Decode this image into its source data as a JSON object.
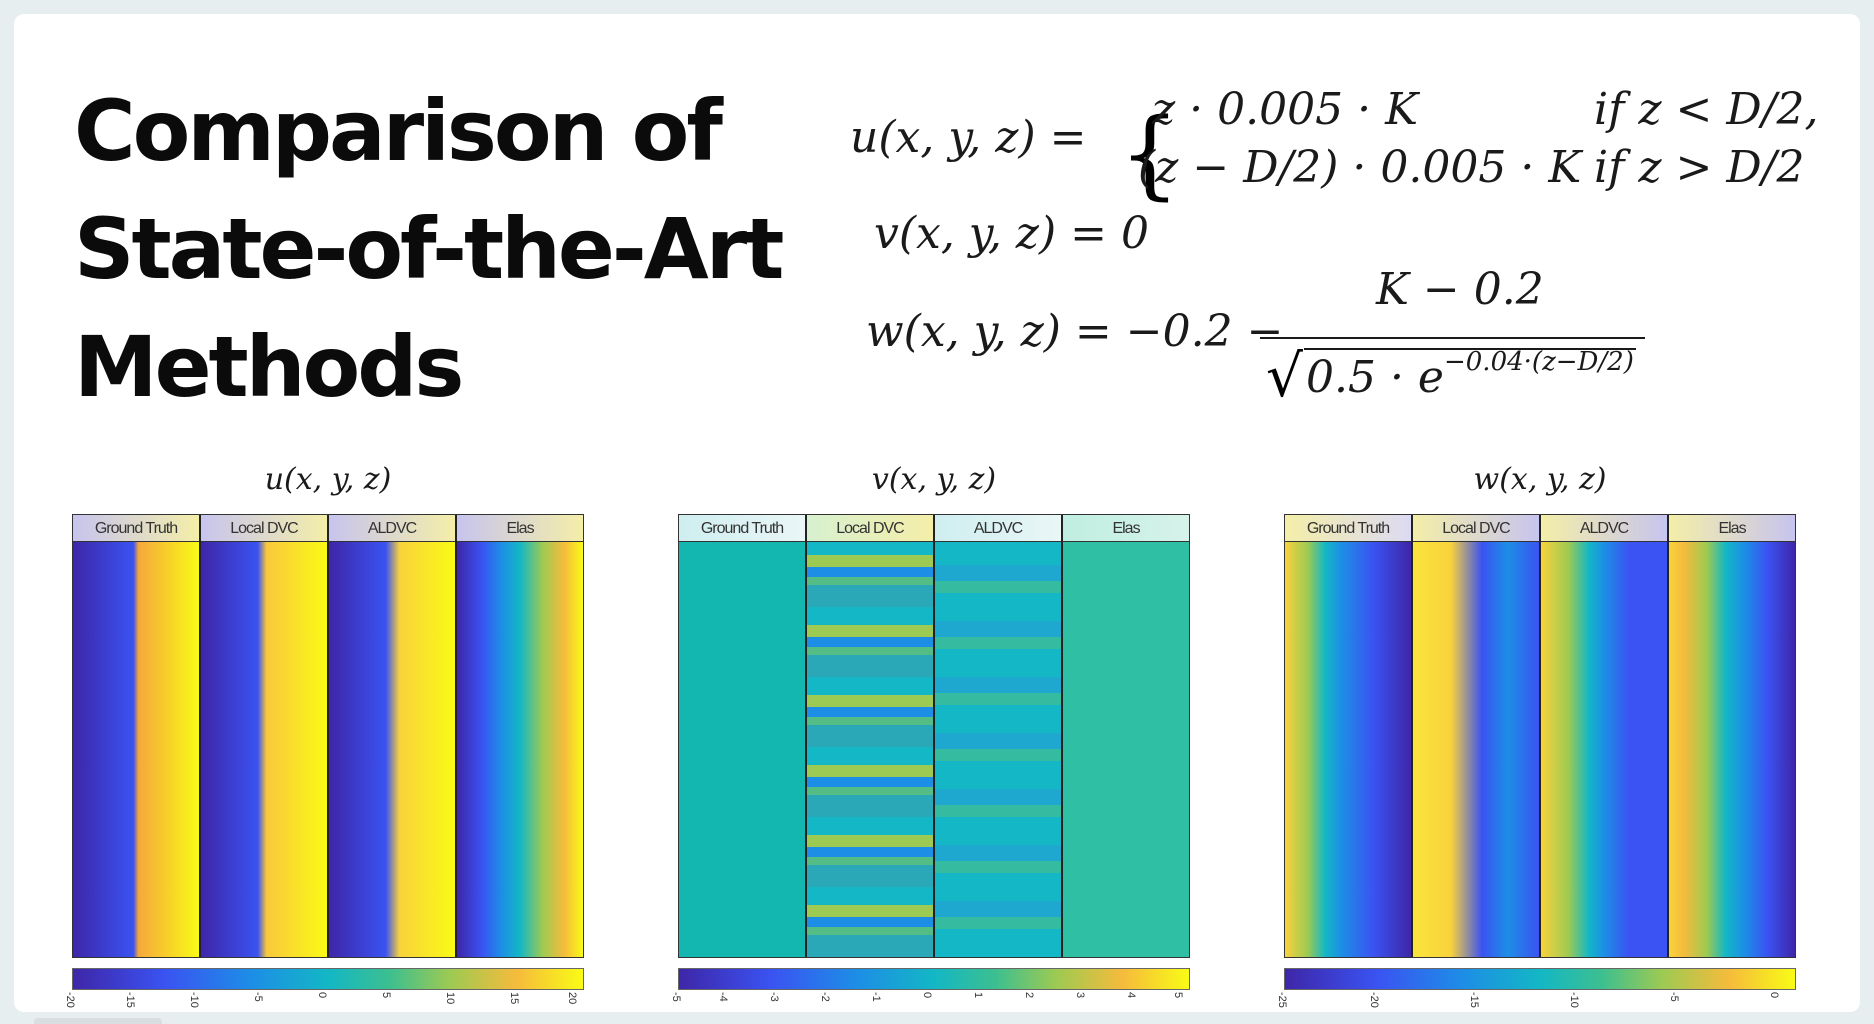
{
  "slide": {
    "title_lines": [
      "Comparison of",
      "State-of-the-Art",
      "Methods"
    ]
  },
  "equations": {
    "u_lhs": "u(x, y, z) =",
    "u_case1": "z · 0.005 · K",
    "u_cond1": "if z < D/2,",
    "u_case2": "(z − D/2) · 0.005 · K",
    "u_cond2": "if z > D/2",
    "v_line": "v(x, y, z) = 0",
    "w_lhs": "w(x, y, z) = −0.2 −",
    "w_num": "K − 0.2",
    "w_den": "0.5 · e",
    "w_exp": "−0.04·(z−D/2)"
  },
  "panels": [
    {
      "title": "u(x, y, z)",
      "columns": [
        "Ground Truth",
        "Local DVC",
        "ALDVC",
        "Elas"
      ],
      "colorbar_ticks": [
        "-20",
        "-15",
        "-10",
        "-5",
        "0",
        "5",
        "10",
        "15",
        "20"
      ]
    },
    {
      "title": "v(x, y, z)",
      "columns": [
        "Ground Truth",
        "Local DVC",
        "ALDVC",
        "Elas"
      ],
      "colorbar_ticks": [
        "-5",
        "-4",
        "-3",
        "-2",
        "-1",
        "0",
        "1",
        "2",
        "3",
        "4",
        "5"
      ]
    },
    {
      "title": "w(x, y, z)",
      "columns": [
        "Ground Truth",
        "Local DVC",
        "ALDVC",
        "Elas"
      ],
      "colorbar_ticks": [
        "-25",
        "-20",
        "-15",
        "-10",
        "-5",
        "0"
      ]
    }
  ],
  "colors": {
    "parula_dark": "#3e26a8",
    "parula_blue": "#3a53f2",
    "parula_teal": "#13b7c5",
    "parula_yellow": "#f9fb15",
    "slide_bg": "#ffffff",
    "frame_bg": "#e6eef0"
  }
}
